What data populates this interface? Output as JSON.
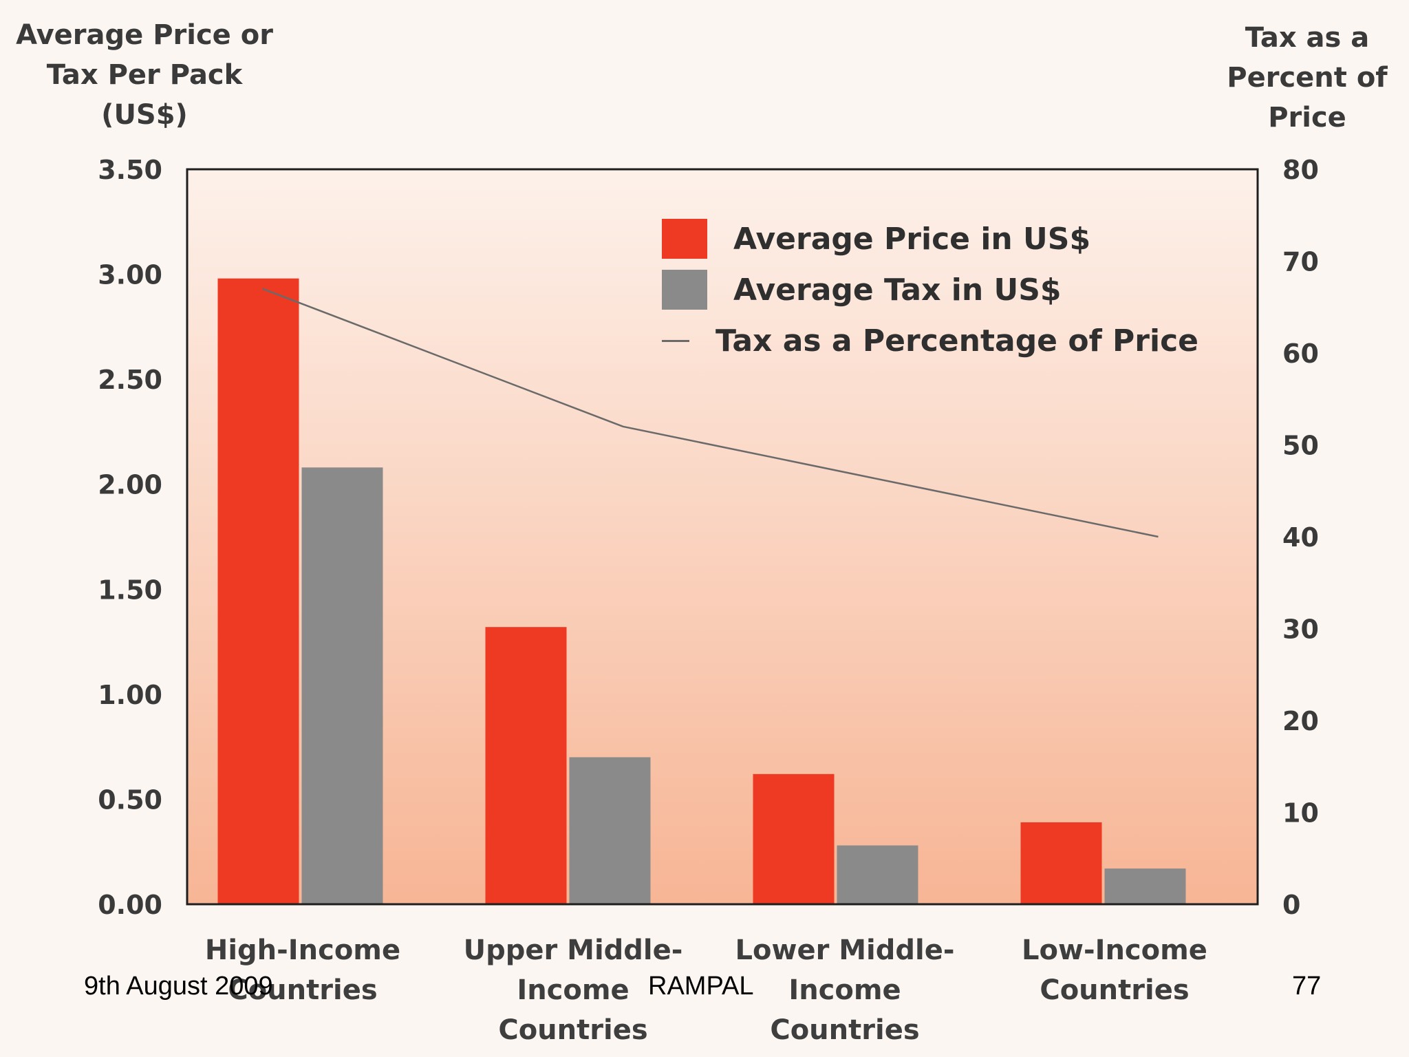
{
  "chart_data": {
    "type": "bar",
    "categories": [
      "High-Income\nCountries",
      "Upper Middle-\nIncome\nCountries",
      "Lower Middle-\nIncome\nCountries",
      "Low-Income\nCountries"
    ],
    "series": [
      {
        "name": "Average Price in US$",
        "axis": "left",
        "values": [
          2.98,
          1.32,
          0.62,
          0.39
        ],
        "color": "#ee3a22"
      },
      {
        "name": "Average Tax in US$",
        "axis": "left",
        "values": [
          2.08,
          0.7,
          0.28,
          0.17
        ],
        "color": "#8a8a8a"
      },
      {
        "name": "Tax as a Percentage of Price",
        "axis": "right",
        "kind": "line",
        "values": [
          67,
          52,
          46,
          40
        ],
        "color": "#6a6a6a"
      }
    ],
    "left_axis": {
      "title": "Average Price or\nTax Per Pack\n(US$)",
      "ylim": [
        0,
        3.5
      ],
      "ticks": [
        "3.50",
        "3.00",
        "2.50",
        "2.00",
        "1.50",
        "1.00",
        "0.50",
        "0.00"
      ]
    },
    "right_axis": {
      "title": "Tax as a\nPercent of\nPrice",
      "ylim": [
        0,
        80
      ],
      "ticks": [
        "80",
        "70",
        "60",
        "50",
        "40",
        "30",
        "20",
        "10",
        "0"
      ]
    },
    "legend_position": "top-right"
  },
  "footer": {
    "date": "9th August 2009",
    "author": "RAMPAL",
    "page": "77"
  }
}
